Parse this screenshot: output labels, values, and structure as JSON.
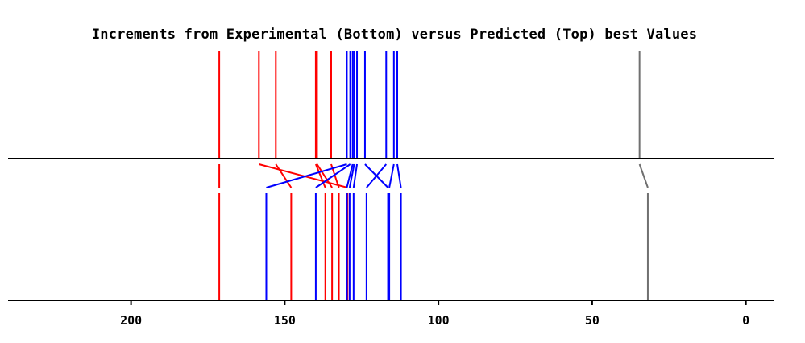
{
  "chart_data": {
    "type": "line-spectrum",
    "title": "Increments from Experimental (Bottom) versus Predicted (Top) best Values",
    "xlabel": "",
    "ylabel": "",
    "xlim": [
      240,
      -9
    ],
    "x_reversed": true,
    "x_ticks": [
      200,
      150,
      100,
      50,
      0
    ],
    "x_tick_labels": [
      "200",
      "150",
      "100",
      "50",
      "0"
    ],
    "colors": {
      "red": "#ff0000",
      "blue": "#0000ff",
      "gray": "#707070",
      "axis": "#000000"
    },
    "lines": [
      {
        "predicted": 171.3,
        "experimental": 171.3,
        "color": "red"
      },
      {
        "predicted": 158.4,
        "experimental": 129.6,
        "color": "red"
      },
      {
        "predicted": 152.9,
        "experimental": 147.9,
        "color": "red"
      },
      {
        "predicted": 139.9,
        "experimental": 136.8,
        "color": "red"
      },
      {
        "predicted": 139.5,
        "experimental": 134.6,
        "color": "red"
      },
      {
        "predicted": 134.9,
        "experimental": 132.4,
        "color": "red"
      },
      {
        "predicted": 129.8,
        "experimental": 156.0,
        "color": "blue"
      },
      {
        "predicted": 128.7,
        "experimental": 139.9,
        "color": "blue"
      },
      {
        "predicted": 127.9,
        "experimental": 129.8,
        "color": "blue"
      },
      {
        "predicted": 127.4,
        "experimental": 128.9,
        "color": "blue"
      },
      {
        "predicted": 126.5,
        "experimental": 127.6,
        "color": "blue"
      },
      {
        "predicted": 123.9,
        "experimental": 116.4,
        "color": "blue"
      },
      {
        "predicted": 117.0,
        "experimental": 123.4,
        "color": "blue"
      },
      {
        "predicted": 114.5,
        "experimental": 116.0,
        "color": "blue"
      },
      {
        "predicted": 113.4,
        "experimental": 112.2,
        "color": "blue"
      },
      {
        "predicted": 34.6,
        "experimental": 31.9,
        "color": "gray"
      }
    ]
  }
}
